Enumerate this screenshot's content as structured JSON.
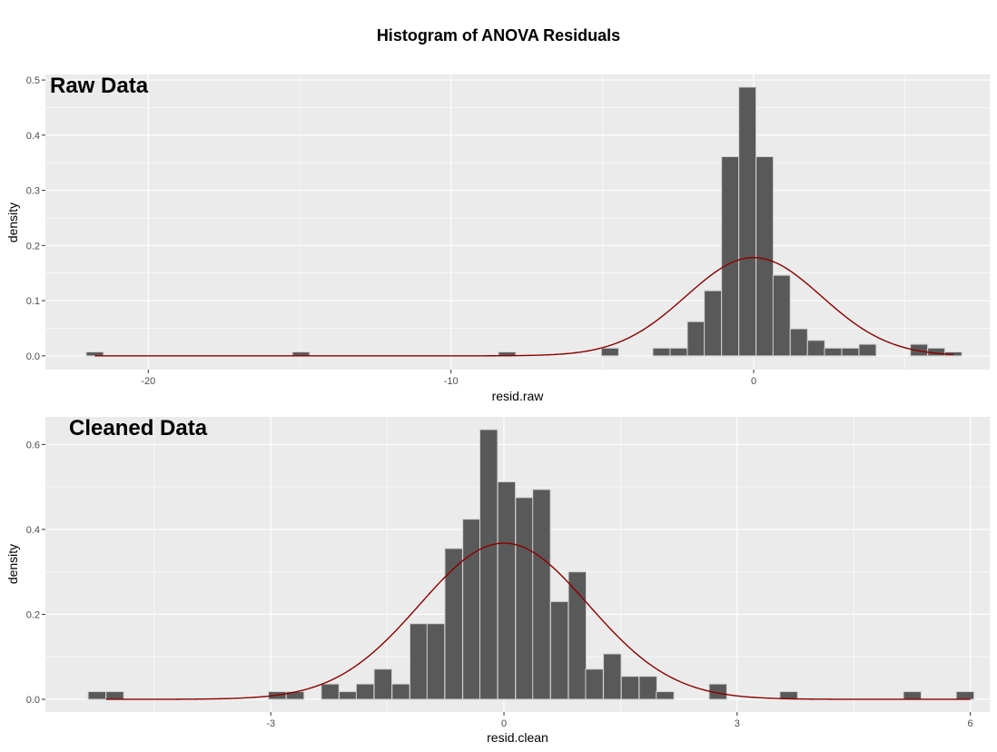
{
  "title": "Histogram of ANOVA Residuals",
  "colors": {
    "bar_fill": "#595959",
    "bar_outline": "#d0d0d0",
    "normal_curve": "#8b0000",
    "panel_bg": "#ebebeb"
  },
  "chart_data": [
    {
      "type": "bar",
      "tag": "Raw Data",
      "xlabel": "resid.raw",
      "ylabel": "density",
      "xlim": [
        -23.4,
        7.8
      ],
      "ylim": [
        -0.025,
        0.51
      ],
      "x_ticks": [
        -20,
        -10,
        0
      ],
      "x_tick_labels": [
        "-20",
        "-10",
        "0"
      ],
      "y_ticks": [
        0.0,
        0.1,
        0.2,
        0.3,
        0.4,
        0.5
      ],
      "y_tick_labels": [
        "0.0",
        "0.1",
        "0.2",
        "0.3",
        "0.4",
        "0.5"
      ],
      "bin_width": 0.567,
      "bin_left_edges": [
        -22.05,
        -15.24,
        -8.43,
        -5.03,
        -3.33,
        -2.76,
        -2.19,
        -1.63,
        -1.06,
        -0.49,
        0.08,
        0.64,
        1.21,
        1.78,
        2.34,
        2.91,
        3.48,
        4.04,
        4.61,
        5.18,
        5.75,
        6.31
      ],
      "values": [
        0.007,
        0.007,
        0.007,
        0.014,
        0.014,
        0.014,
        0.062,
        0.118,
        0.361,
        0.487,
        0.361,
        0.146,
        0.049,
        0.028,
        0.014,
        0.014,
        0.021,
        0.0,
        0.0,
        0.021,
        0.014,
        0.007
      ],
      "normal_curve": {
        "mean": 0.0,
        "sd": 2.24,
        "from": -21.77,
        "to": 6.6
      },
      "grid": true
    },
    {
      "type": "bar",
      "tag": "Cleaned Data",
      "xlabel": "resid.clean",
      "ylabel": "density",
      "xlim": [
        -5.9,
        6.25
      ],
      "ylim": [
        -0.03,
        0.665
      ],
      "x_ticks": [
        -3,
        0,
        3,
        6
      ],
      "x_tick_labels": [
        "-3",
        "0",
        "3",
        "6"
      ],
      "y_ticks": [
        0.0,
        0.2,
        0.4,
        0.6
      ],
      "y_tick_labels": [
        "0.0",
        "0.2",
        "0.4",
        "0.6"
      ],
      "bin_width": 0.227,
      "bin_left_edges": [
        -5.35,
        -5.12,
        -3.03,
        -2.8,
        -2.35,
        -2.12,
        -1.9,
        -1.67,
        -1.44,
        -1.21,
        -0.99,
        -0.76,
        -0.53,
        -0.31,
        -0.08,
        0.15,
        0.37,
        0.6,
        0.83,
        1.05,
        1.28,
        1.51,
        1.74,
        1.96,
        2.64,
        3.55,
        5.14,
        5.82
      ],
      "values": [
        0.018,
        0.018,
        0.018,
        0.018,
        0.036,
        0.018,
        0.036,
        0.071,
        0.036,
        0.178,
        0.178,
        0.355,
        0.424,
        0.635,
        0.512,
        0.475,
        0.494,
        0.23,
        0.3,
        0.071,
        0.107,
        0.054,
        0.054,
        0.018,
        0.036,
        0.018,
        0.018,
        0.018
      ],
      "normal_curve": {
        "mean": 0.0,
        "sd": 1.085,
        "from": -5.12,
        "to": 6.0
      },
      "grid": true
    }
  ]
}
